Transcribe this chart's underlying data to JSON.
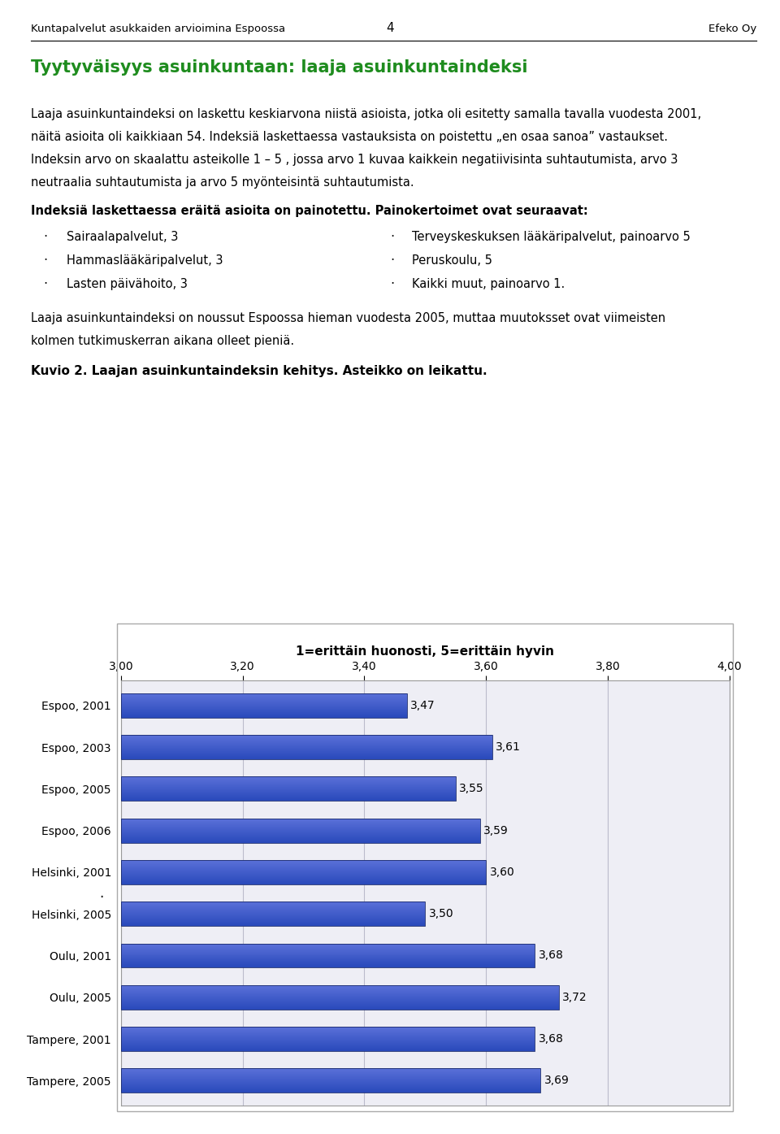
{
  "page_number": "4",
  "header_left": "Kuntapalvelut asukkaiden arvioimina Espoossa",
  "header_right": "Efeko Oy",
  "title": "Tyytyväisyys asuinkuntaan: laaja asuinkuntaindeksi",
  "para1_line1": "Laaja asuinkuntaindeksi on laskettu keskiarvona niistä asioista, jotka oli esitetty samalla tavalla vuodesta 2001,",
  "para1_line2": "näitä asioita oli kaikkiaan 54. Indeksiä laskettaessa vastauksista on poistettu „en osaa sanoa” vastaukset.",
  "para1_line3": "Indeksin arvo on skaalattu asteikolle 1 – 5 , jossa arvo 1 kuvaa kaikkein negatiivisinta suhtautumista, arvo 3",
  "para1_line4": "neutraalia suhtautumista ja arvo 5 myönteisintä suhtautumista.",
  "bold_text": "Indeksiä laskettaessa eräitä asioita on painotettu. Painokertoimet ovat seuraavat:",
  "bullet_left": [
    "Sairaalapalvelut, 3",
    "Hammaslääkäripalvelut, 3",
    "Lasten päivähoito, 3"
  ],
  "bullet_right": [
    "Terveyskeskuksen lääkäripalvelut, painoarvo 5",
    "Peruskoulu, 5",
    "Kaikki muut, painoarvo 1."
  ],
  "para2_line1": "Laaja asuinkuntaindeksi on noussut Espoossa hieman vuodesta 2005, muttaa muutoksset ovat viimeisten",
  "para2_line2": "kolmen tutkimuskerran aikana olleet pieniä.",
  "figure_caption": "Kuvio 2. Laajan asuinkuntaindeksin kehitys. Asteikko on leikattu.",
  "chart_title": "1=erittäin huonosti, 5=erittäin hyvin",
  "categories": [
    "Espoo, 2001",
    "Espoo, 2003",
    "Espoo, 2005",
    "Espoo, 2006",
    "Helsinki, 2001",
    "Helsinki, 2005",
    "Oulu, 2001",
    "Oulu, 2005",
    "Tampere, 2001",
    "Tampere, 2005"
  ],
  "values": [
    3.47,
    3.61,
    3.55,
    3.59,
    3.6,
    3.5,
    3.68,
    3.72,
    3.68,
    3.69
  ],
  "xlim": [
    3.0,
    4.0
  ],
  "xticks": [
    3.0,
    3.2,
    3.4,
    3.6,
    3.8,
    4.0
  ],
  "xtick_labels": [
    "3,00",
    "3,20",
    "3,40",
    "3,60",
    "3,80",
    "4,00"
  ],
  "bar_color": "#3B5CC4",
  "bar_edge_color": "#1a2a6c",
  "background_color": "#ffffff",
  "chart_bg_color": "#eeeef5",
  "grid_color": "#bbbbcc",
  "title_color": "#1e8c1e",
  "header_color": "#000000",
  "text_color": "#000000"
}
